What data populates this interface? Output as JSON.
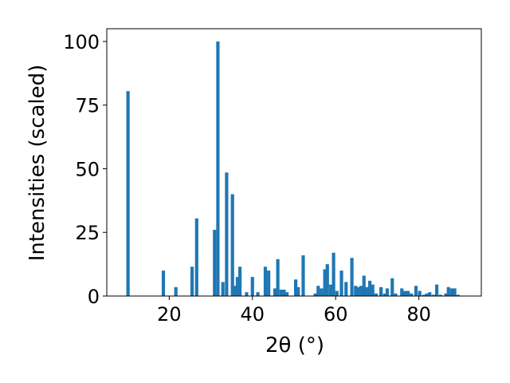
{
  "chart_data": {
    "type": "bar",
    "xlabel": "2θ (°)",
    "ylabel": "Intensities (scaled)",
    "xlim": [
      5,
      95
    ],
    "ylim": [
      0,
      105
    ],
    "xticks": [
      20,
      40,
      60,
      80
    ],
    "yticks": [
      0,
      25,
      50,
      75,
      100
    ],
    "grid": false,
    "bar_color": "#1f77b4",
    "bar_width": 0.8,
    "x": [
      10.1,
      18.6,
      21.6,
      25.5,
      26.6,
      30.9,
      31.7,
      32.9,
      33.8,
      35.2,
      35.8,
      36.4,
      37.0,
      38.6,
      40.0,
      41.3,
      43.1,
      43.9,
      45.4,
      46.1,
      46.9,
      47.6,
      48.3,
      50.4,
      51.0,
      52.2,
      55.1,
      55.8,
      56.6,
      57.4,
      58.0,
      58.8,
      59.5,
      60.3,
      61.4,
      62.5,
      63.9,
      64.8,
      65.5,
      66.1,
      66.8,
      67.4,
      68.2,
      68.9,
      69.7,
      70.9,
      71.8,
      72.4,
      73.6,
      74.4,
      75.9,
      76.6,
      77.4,
      78.2,
      79.3,
      80.2,
      81.2,
      81.9,
      82.6,
      83.5,
      84.3,
      85.2,
      86.5,
      87.1,
      87.9,
      88.6,
      89.4
    ],
    "values": [
      80.5,
      10,
      3.5,
      11.5,
      30.5,
      26,
      100,
      5.5,
      48.5,
      40,
      4,
      7.5,
      11.5,
      1.5,
      7.5,
      1.5,
      11.5,
      10,
      3,
      14.5,
      2.5,
      2.5,
      1.5,
      6.5,
      3.5,
      16,
      1,
      4,
      3,
      10.5,
      12.5,
      4.5,
      17,
      2,
      10,
      5.5,
      15,
      4,
      3.5,
      4,
      8,
      3.5,
      6,
      4.5,
      1,
      3.5,
      1,
      3,
      7,
      1,
      3,
      2,
      2,
      1,
      4,
      2,
      0.5,
      1,
      1.5,
      0.5,
      4.5,
      0.5,
      1,
      3.5,
      3,
      3,
      0.5
    ]
  }
}
